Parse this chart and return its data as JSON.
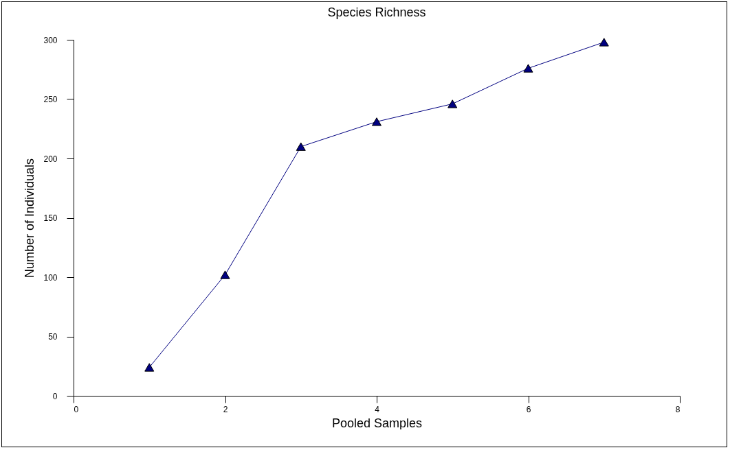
{
  "chart_data": {
    "type": "line",
    "title": "Species Richness",
    "xlabel": "Pooled Samples",
    "ylabel": "Number of Individuals",
    "x": [
      1,
      2,
      3,
      4,
      5,
      6,
      7
    ],
    "series": [
      {
        "color": "#000080",
        "values": [
          24,
          102,
          210,
          231,
          246,
          276,
          298
        ]
      }
    ],
    "xlim": [
      0,
      8
    ],
    "xticks": [
      0,
      2,
      4,
      6,
      8
    ],
    "ylim": [
      0,
      300
    ],
    "yticks": [
      0,
      50,
      100,
      150,
      200,
      250,
      300
    ],
    "marker": "triangle",
    "line_style": "solid"
  }
}
